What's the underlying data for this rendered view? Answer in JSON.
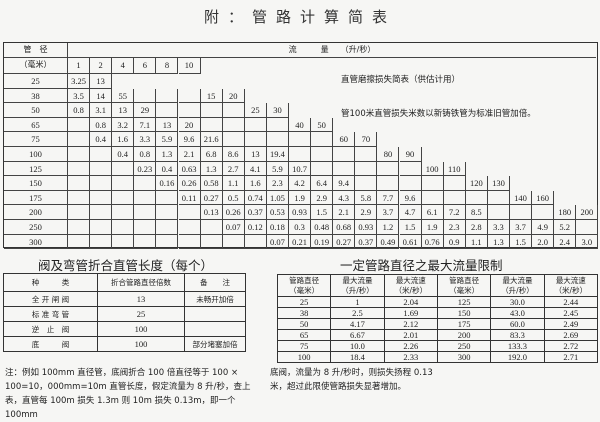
{
  "title": "附：管路计算简表",
  "friction_table": {
    "diameter_header": "管　径",
    "diameter_unit": "（毫米）",
    "flow_header": "流　　　量　　（升/秒）",
    "caption": "直管磨擦损失简表（供估计用）",
    "note": "管100米直管损失米数以新铸铁管为标准旧管加倍。",
    "top_flow_columns": [
      "1",
      "2",
      "4",
      "6",
      "8",
      "10"
    ],
    "rows": [
      {
        "d": "25",
        "cells": [
          "3.25",
          "13"
        ]
      },
      {
        "d": "38",
        "cells": [
          "3.5",
          "14",
          "55",
          "",
          "",
          "",
          "15",
          "20"
        ]
      },
      {
        "d": "50",
        "cells": [
          "0.8",
          "3.1",
          "13",
          "29",
          "",
          "",
          "",
          "",
          "25",
          "30"
        ]
      },
      {
        "d": "65",
        "cells": [
          "",
          "0.8",
          "3.2",
          "7.1",
          "13",
          "20",
          "",
          "",
          "",
          "",
          "40",
          "50"
        ]
      },
      {
        "d": "75",
        "cells": [
          "",
          "0.4",
          "1.6",
          "3.3",
          "5.9",
          "9.6",
          "21.6",
          "",
          "",
          "",
          "",
          "",
          "60",
          "70"
        ]
      },
      {
        "d": "100",
        "cells": [
          "",
          "",
          "0.4",
          "0.8",
          "1.3",
          "2.1",
          "6.8",
          "8.6",
          "13",
          "19.4",
          "",
          "",
          "",
          "",
          "80",
          "90"
        ]
      },
      {
        "d": "125",
        "cells": [
          "",
          "",
          "",
          "0.23",
          "0.4",
          "0.63",
          "1.3",
          "2.7",
          "4.1",
          "5.9",
          "10.7",
          "",
          "",
          "",
          "",
          "",
          "100",
          "110"
        ]
      },
      {
        "d": "150",
        "cells": [
          "",
          "",
          "",
          "",
          "0.16",
          "0.26",
          "0.58",
          "1.1",
          "1.6",
          "2.3",
          "4.2",
          "6.4",
          "9.4",
          "",
          "",
          "",
          "",
          "",
          "120",
          "130"
        ]
      },
      {
        "d": "175",
        "cells": [
          "",
          "",
          "",
          "",
          "",
          "0.11",
          "0.27",
          "0.5",
          "0.74",
          "1.05",
          "1.9",
          "2.9",
          "4.3",
          "5.8",
          "7.7",
          "9.6",
          "",
          "",
          "",
          "",
          "140",
          "160"
        ]
      },
      {
        "d": "200",
        "cells": [
          "",
          "",
          "",
          "",
          "",
          "",
          "0.13",
          "0.26",
          "0.37",
          "0.53",
          "0.93",
          "1.5",
          "2.1",
          "2.9",
          "3.7",
          "4.7",
          "6.1",
          "7.2",
          "8.5",
          "",
          "",
          "",
          "180",
          "200"
        ]
      },
      {
        "d": "250",
        "cells": [
          "",
          "",
          "",
          "",
          "",
          "",
          "",
          "0.07",
          "0.12",
          "0.18",
          "0.3",
          "0.48",
          "0.68",
          "0.93",
          "1.2",
          "1.5",
          "1.9",
          "2.3",
          "2.8",
          "3.3",
          "3.7",
          "4.9",
          "5.2",
          ""
        ]
      },
      {
        "d": "300",
        "cells": [
          "",
          "",
          "",
          "",
          "",
          "",
          "",
          "",
          "",
          "0.07",
          "0.21",
          "0.19",
          "0.27",
          "0.37",
          "0.49",
          "0.61",
          "0.76",
          "0.9",
          "1.1",
          "1.3",
          "1.5",
          "2.0",
          "2.4",
          "3.0"
        ]
      }
    ]
  },
  "valve_table": {
    "title": "阀及弯管折合直管长度（每个）",
    "headers": [
      "种　　　类",
      "折合管路直径倍数",
      "备　　注"
    ],
    "rows": [
      [
        "全 开 闸 阀",
        "13",
        "未畅开加倍"
      ],
      [
        "标 准 弯 管",
        "25",
        ""
      ],
      [
        "逆　止　阀",
        "100",
        ""
      ],
      [
        "底　　　阀",
        "100",
        "部分堵塞加倍"
      ]
    ]
  },
  "limit_table": {
    "title": "一定管路直径之最大流量限制",
    "headers": [
      [
        "管路直径",
        "（毫米）"
      ],
      [
        "最大流量",
        "（升/秒）"
      ],
      [
        "最大流速",
        "（米/秒）"
      ],
      [
        "管路直径",
        "（毫米）"
      ],
      [
        "最大流量",
        "（升/秒）"
      ],
      [
        "最大流速",
        "（米/秒）"
      ]
    ],
    "rows": [
      [
        "25",
        "1",
        "2.04",
        "125",
        "30.0",
        "2.44"
      ],
      [
        "38",
        "2.5",
        "1.69",
        "150",
        "43.0",
        "2.45"
      ],
      [
        "50",
        "4.17",
        "2.12",
        "175",
        "60.0",
        "2.49"
      ],
      [
        "65",
        "6.67",
        "2.01",
        "200",
        "83.3",
        "2.69"
      ],
      [
        "75",
        "10.0",
        "2.26",
        "250",
        "133.3",
        "2.72"
      ],
      [
        "100",
        "18.4",
        "2.33",
        "300",
        "192.0",
        "2.71"
      ]
    ]
  },
  "notes": {
    "left": [
      "注：例如 100mm 直径管，底阀折合 100 倍直径等于 100 ×",
      "100=10，000mm=10m 直管长度，假定流量为 8 升/秒，查上",
      "表，直管每 100m 损失 1.3m 则 10m 损失 0.13m，即一个 100mm"
    ],
    "right": [
      "底阀，流量为 8 升/秒时，则损失扬程 0.13",
      "米，超过此限使管路损失显著增加。"
    ]
  }
}
